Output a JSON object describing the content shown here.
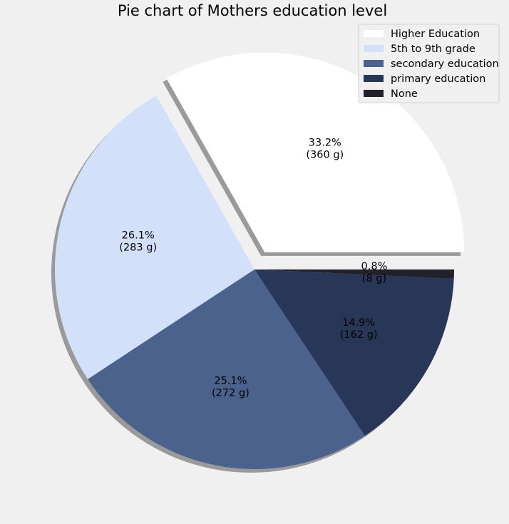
{
  "chart_data": {
    "type": "pie",
    "title": "Pie chart of Mothers education level",
    "unit": "g",
    "legend_position": "top-right",
    "exploded_slice": "Higher Education",
    "shadow": true,
    "slices": [
      {
        "label": "Higher Education",
        "value": 360,
        "percent_label": "33.2%",
        "value_label": "(360 g)",
        "color": "#ffffff"
      },
      {
        "label": "5th to 9th grade",
        "value": 283,
        "percent_label": "26.1%",
        "value_label": "(283 g)",
        "color": "#d2e1f9"
      },
      {
        "label": "secondary education",
        "value": 272,
        "percent_label": "25.1%",
        "value_label": "(272 g)",
        "color": "#4b638c"
      },
      {
        "label": "primary education",
        "value": 162,
        "percent_label": "14.9%",
        "value_label": "(162 g)",
        "color": "#283657"
      },
      {
        "label": "None",
        "value": 8,
        "percent_label": "0.8%",
        "value_label": "(8 g)",
        "color": "#20212b"
      }
    ]
  }
}
